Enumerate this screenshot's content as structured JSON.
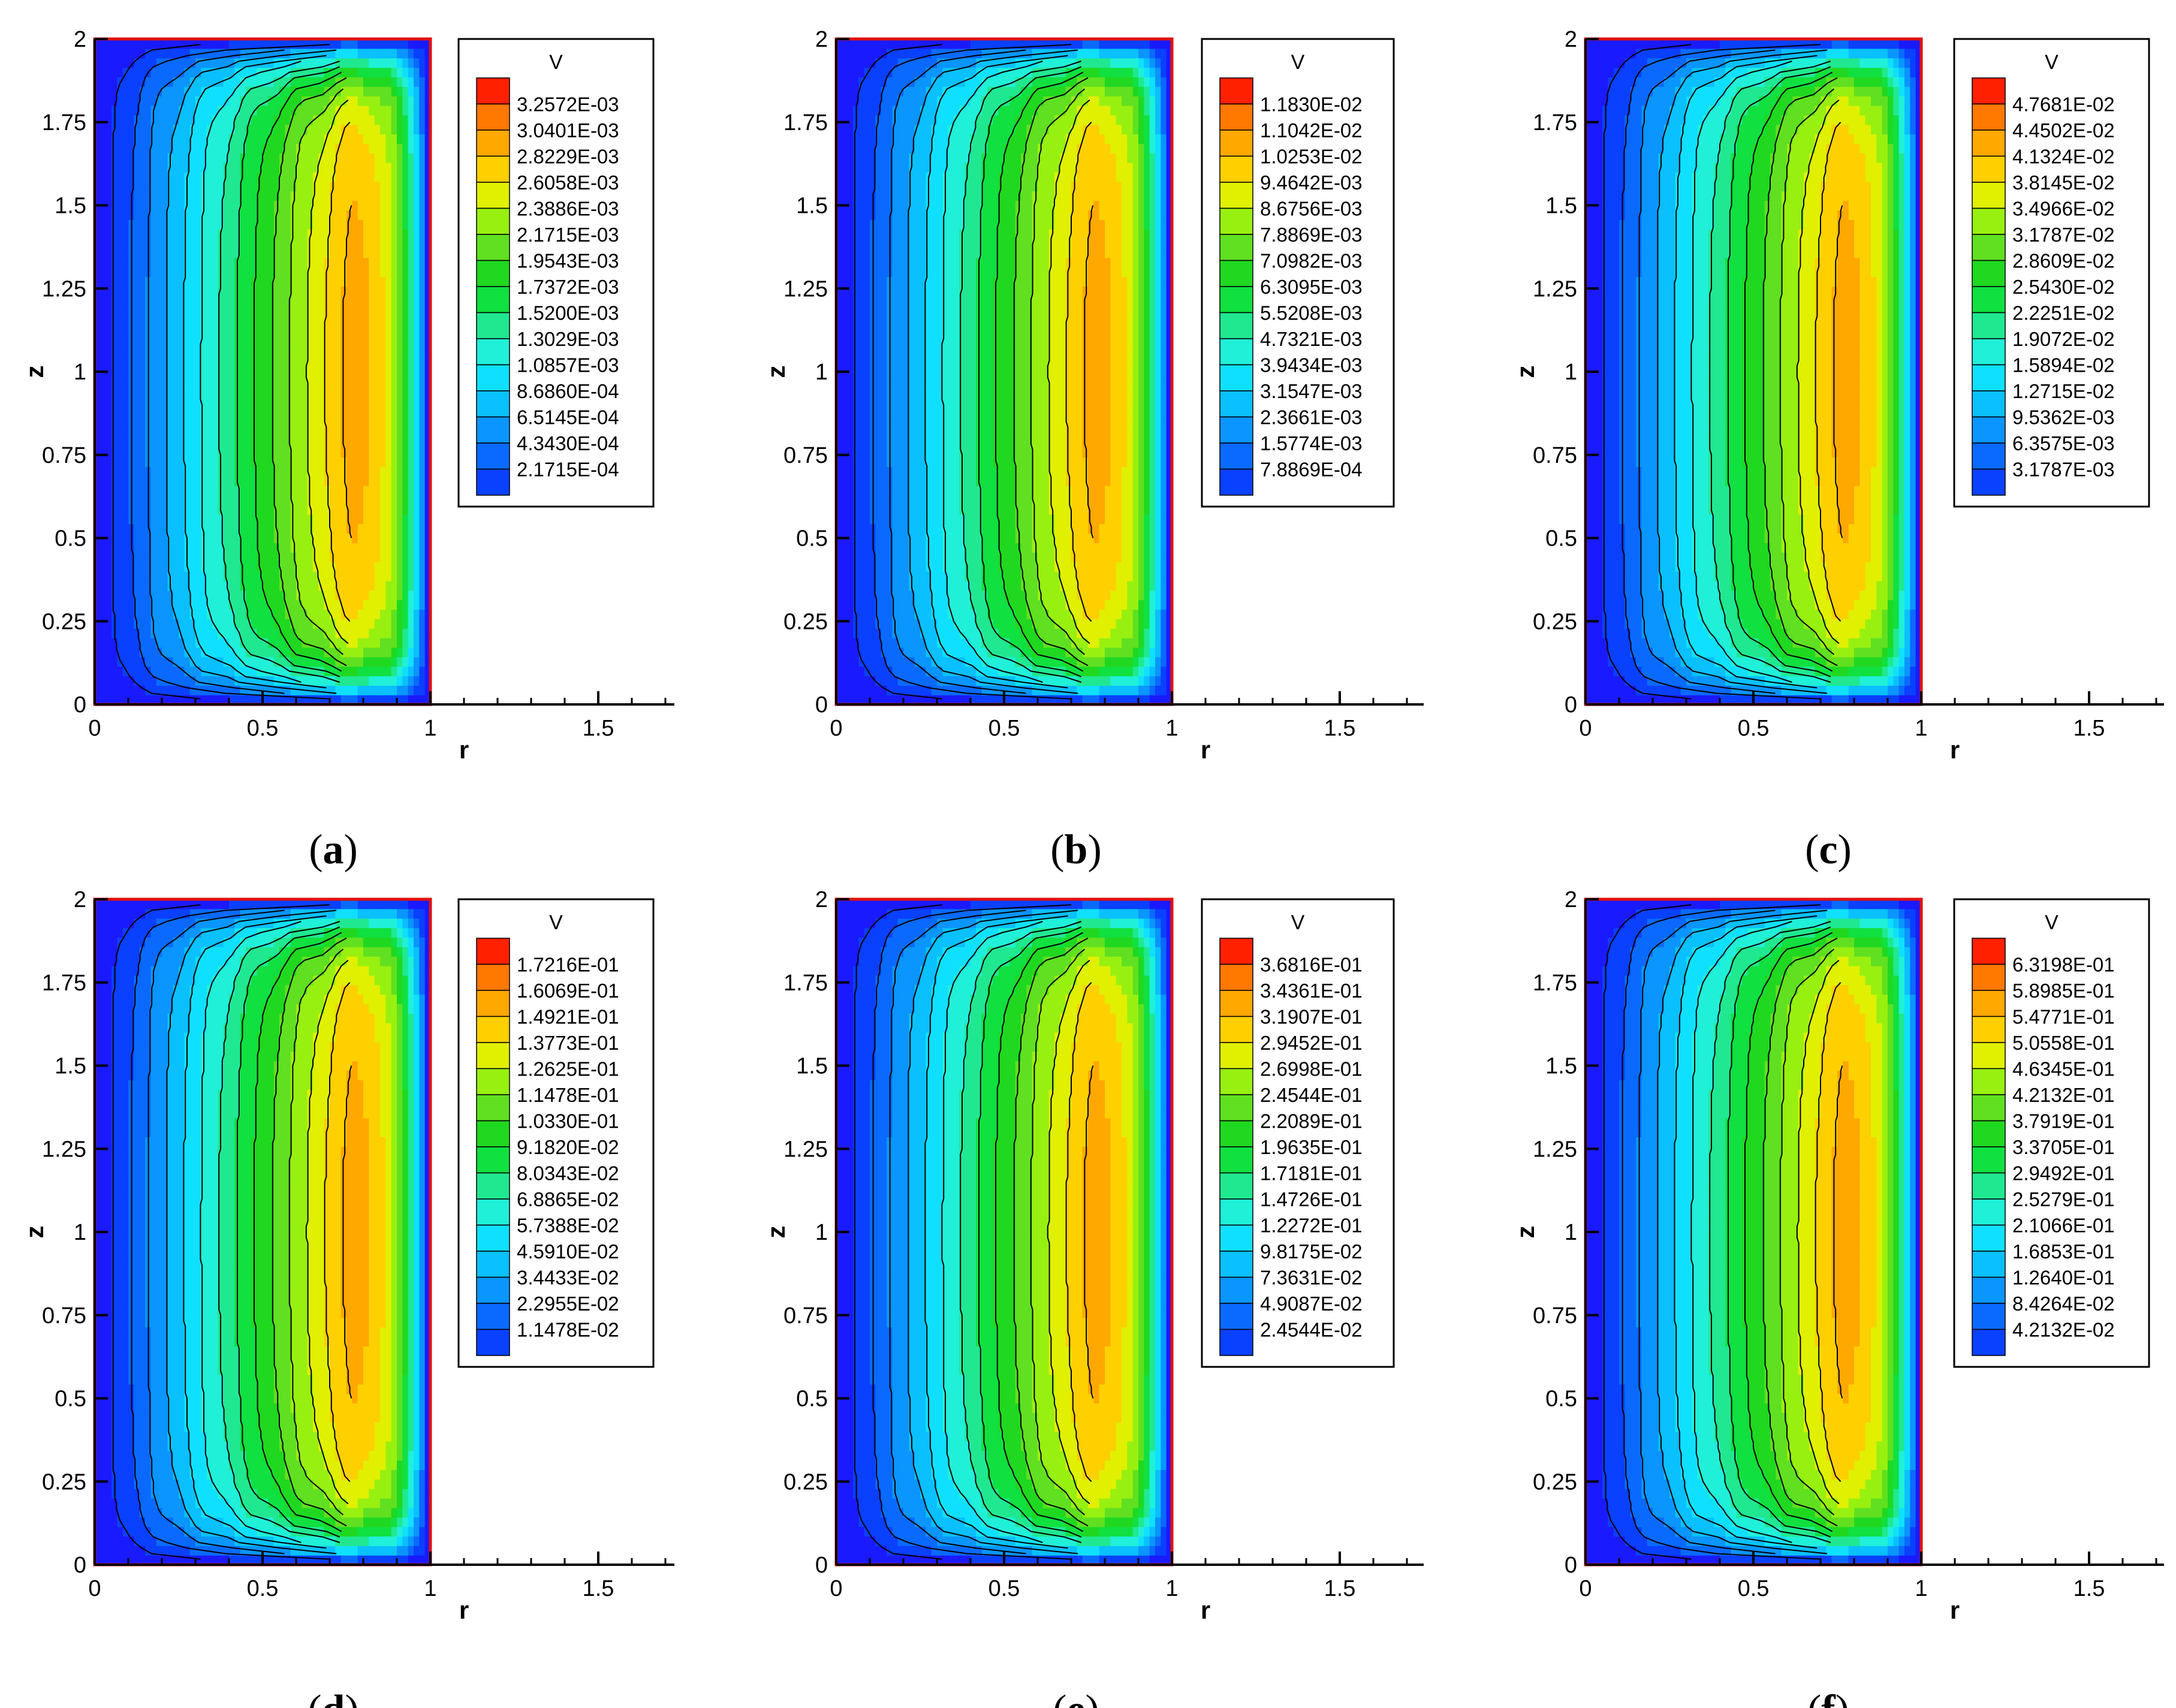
{
  "chart_data": [
    {
      "type": "contour",
      "caption": "(a)",
      "variable": "V",
      "xlabel": "r",
      "ylabel": "z",
      "xticks": [
        "0",
        "0.5",
        "1",
        "1.5"
      ],
      "yticks": [
        "0",
        "0.25",
        "0.5",
        "0.75",
        "1",
        "1.25",
        "1.5",
        "1.75",
        "2"
      ],
      "xlim": [
        0,
        1.75
      ],
      "ylim": [
        0,
        2
      ],
      "domain_r": [
        0,
        1
      ],
      "legend_levels": [
        "3.2572E-03",
        "3.0401E-03",
        "2.8229E-03",
        "2.6058E-03",
        "2.3886E-03",
        "2.1715E-03",
        "1.9543E-03",
        "1.7372E-03",
        "1.5200E-03",
        "1.3029E-03",
        "1.0857E-03",
        "8.6860E-04",
        "6.5145E-04",
        "4.3430E-04",
        "2.1715E-04"
      ]
    },
    {
      "type": "contour",
      "caption": "(b)",
      "variable": "V",
      "xlabel": "r",
      "ylabel": "z",
      "xticks": [
        "0",
        "0.5",
        "1",
        "1.5"
      ],
      "yticks": [
        "0",
        "0.25",
        "0.5",
        "0.75",
        "1",
        "1.25",
        "1.5",
        "1.75",
        "2"
      ],
      "xlim": [
        0,
        1.75
      ],
      "ylim": [
        0,
        2
      ],
      "domain_r": [
        0,
        1
      ],
      "legend_levels": [
        "1.1830E-02",
        "1.1042E-02",
        "1.0253E-02",
        "9.4642E-03",
        "8.6756E-03",
        "7.8869E-03",
        "7.0982E-03",
        "6.3095E-03",
        "5.5208E-03",
        "4.7321E-03",
        "3.9434E-03",
        "3.1547E-03",
        "2.3661E-03",
        "1.5774E-03",
        "7.8869E-04"
      ]
    },
    {
      "type": "contour",
      "caption": "(c)",
      "variable": "V",
      "xlabel": "r",
      "ylabel": "z",
      "xticks": [
        "0",
        "0.5",
        "1",
        "1.5"
      ],
      "yticks": [
        "0",
        "0.25",
        "0.5",
        "0.75",
        "1",
        "1.25",
        "1.5",
        "1.75",
        "2"
      ],
      "xlim": [
        0,
        1.75
      ],
      "ylim": [
        0,
        2
      ],
      "domain_r": [
        0,
        1
      ],
      "legend_levels": [
        "4.7681E-02",
        "4.4502E-02",
        "4.1324E-02",
        "3.8145E-02",
        "3.4966E-02",
        "3.1787E-02",
        "2.8609E-02",
        "2.5430E-02",
        "2.2251E-02",
        "1.9072E-02",
        "1.5894E-02",
        "1.2715E-02",
        "9.5362E-03",
        "6.3575E-03",
        "3.1787E-03"
      ]
    },
    {
      "type": "contour",
      "caption": "(d)",
      "variable": "V",
      "xlabel": "r",
      "ylabel": "z",
      "xticks": [
        "0",
        "0.5",
        "1",
        "1.5"
      ],
      "yticks": [
        "0",
        "0.25",
        "0.5",
        "0.75",
        "1",
        "1.25",
        "1.5",
        "1.75",
        "2"
      ],
      "xlim": [
        0,
        1.75
      ],
      "ylim": [
        0,
        2
      ],
      "domain_r": [
        0,
        1
      ],
      "legend_levels": [
        "1.7216E-01",
        "1.6069E-01",
        "1.4921E-01",
        "1.3773E-01",
        "1.2625E-01",
        "1.1478E-01",
        "1.0330E-01",
        "9.1820E-02",
        "8.0343E-02",
        "6.8865E-02",
        "5.7388E-02",
        "4.5910E-02",
        "3.4433E-02",
        "2.2955E-02",
        "1.1478E-02"
      ]
    },
    {
      "type": "contour",
      "caption": "(e)",
      "variable": "V",
      "xlabel": "r",
      "ylabel": "z",
      "xticks": [
        "0",
        "0.5",
        "1",
        "1.5"
      ],
      "yticks": [
        "0",
        "0.25",
        "0.5",
        "0.75",
        "1",
        "1.25",
        "1.5",
        "1.75",
        "2"
      ],
      "xlim": [
        0,
        1.75
      ],
      "ylim": [
        0,
        2
      ],
      "domain_r": [
        0,
        1
      ],
      "legend_levels": [
        "3.6816E-01",
        "3.4361E-01",
        "3.1907E-01",
        "2.9452E-01",
        "2.6998E-01",
        "2.4544E-01",
        "2.2089E-01",
        "1.9635E-01",
        "1.7181E-01",
        "1.4726E-01",
        "1.2272E-01",
        "9.8175E-02",
        "7.3631E-02",
        "4.9087E-02",
        "2.4544E-02"
      ]
    },
    {
      "type": "contour",
      "caption": "(f)",
      "variable": "V",
      "xlabel": "r",
      "ylabel": "z",
      "xticks": [
        "0",
        "0.5",
        "1",
        "1.5"
      ],
      "yticks": [
        "0",
        "0.25",
        "0.5",
        "0.75",
        "1",
        "1.25",
        "1.5",
        "1.75",
        "2"
      ],
      "xlim": [
        0,
        1.75
      ],
      "ylim": [
        0,
        2
      ],
      "domain_r": [
        0,
        1
      ],
      "legend_levels": [
        "6.3198E-01",
        "5.8985E-01",
        "5.4771E-01",
        "5.0558E-01",
        "4.6345E-01",
        "4.2132E-01",
        "3.7919E-01",
        "3.3705E-01",
        "2.9492E-01",
        "2.5279E-01",
        "2.1066E-01",
        "1.6853E-01",
        "1.2640E-01",
        "8.4264E-02",
        "4.2132E-02"
      ]
    }
  ],
  "colormap": [
    "#1a1aff",
    "#0a40ff",
    "#0a6aff",
    "#0a95ff",
    "#0ac0ff",
    "#10e0ff",
    "#20f0d8",
    "#20e890",
    "#10e040",
    "#20d820",
    "#60e020",
    "#98f010",
    "#e0f000",
    "#ffd000",
    "#ffa800",
    "#ff7800",
    "#ff2000"
  ]
}
